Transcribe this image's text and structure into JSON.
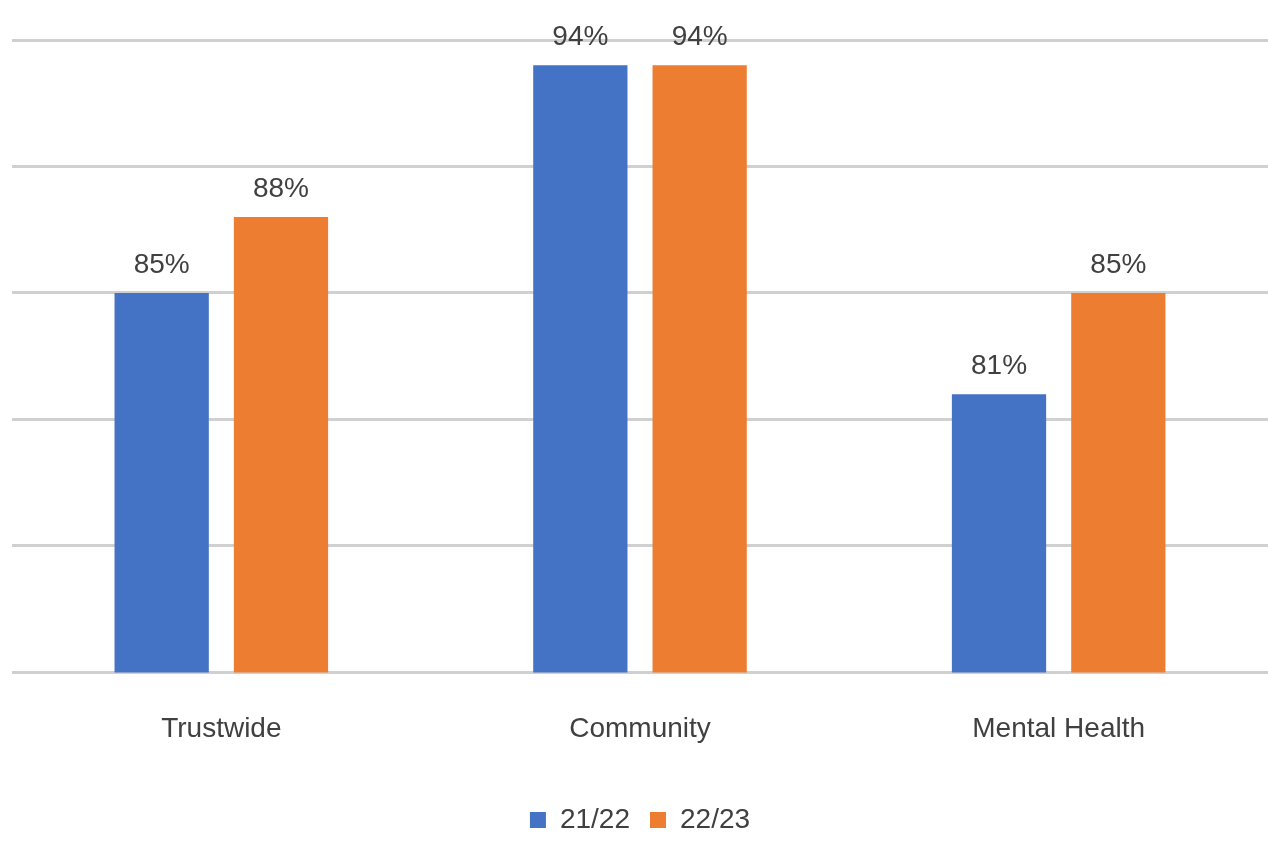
{
  "chart_data": {
    "type": "bar",
    "categories": [
      "Trustwide",
      "Community",
      "Mental Health"
    ],
    "series": [
      {
        "name": "21/22",
        "color": "#4472c4",
        "values": [
          85,
          94,
          81
        ],
        "value_labels": [
          "85%",
          "94%",
          "81%"
        ]
      },
      {
        "name": "22/23",
        "color": "#ed7d31",
        "values": [
          88,
          94,
          85
        ],
        "value_labels": [
          "88%",
          "94%",
          "85%"
        ]
      }
    ],
    "ylim": [
      70,
      95
    ],
    "yticks": [
      {
        "value": 70,
        "label": null
      },
      {
        "value": 75,
        "label": null
      },
      {
        "value": 80,
        "label": null
      },
      {
        "value": 85,
        "label": null
      },
      {
        "value": 90,
        "label": null
      },
      {
        "value": 95,
        "label": null
      }
    ],
    "tick_labels": "x",
    "grid": "y",
    "legend": "bottom"
  }
}
